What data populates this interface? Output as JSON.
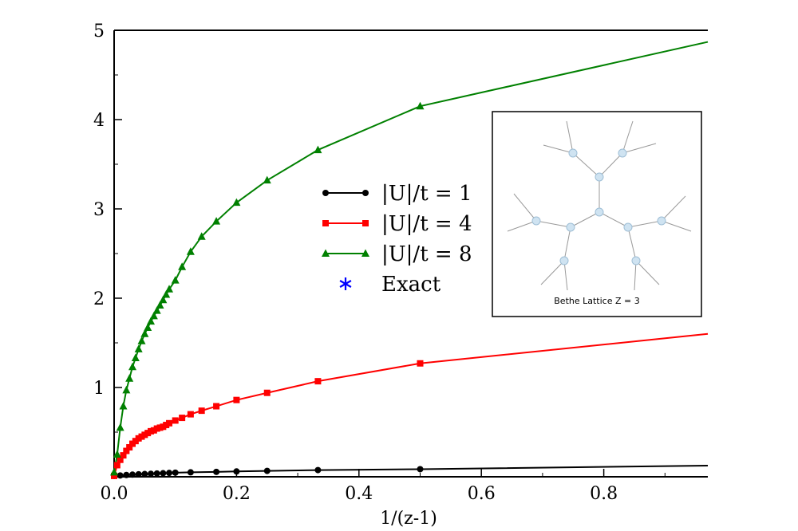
{
  "chart_data": {
    "type": "line",
    "title": "",
    "xlabel": "1/(z-1)",
    "ylabel": "",
    "xlim": [
      0,
      0.97
    ],
    "ylim": [
      0,
      5
    ],
    "x_ticks": [
      "0.0",
      "0.2",
      "0.4",
      "0.6",
      "0.8"
    ],
    "y_ticks": [
      "1",
      "2",
      "3",
      "4",
      "5"
    ],
    "grid": false,
    "legend_position": "center",
    "series": [
      {
        "name": "|U|/t = 1",
        "color": "#000000",
        "marker": "circle",
        "x": [
          0.0,
          0.01,
          0.02,
          0.03,
          0.04,
          0.05,
          0.06,
          0.07,
          0.08,
          0.09,
          0.1,
          0.125,
          0.167,
          0.2,
          0.25,
          0.333,
          0.5
        ],
        "y": [
          0.01,
          0.015,
          0.02,
          0.024,
          0.028,
          0.031,
          0.034,
          0.037,
          0.04,
          0.043,
          0.046,
          0.05,
          0.055,
          0.06,
          0.066,
          0.075,
          0.085
        ],
        "line_end": {
          "x": 0.97,
          "y": 0.125
        }
      },
      {
        "name": "|U|/t = 4",
        "color": "#ff0000",
        "marker": "square",
        "x": [
          0.0,
          0.005,
          0.01,
          0.015,
          0.02,
          0.025,
          0.03,
          0.035,
          0.04,
          0.045,
          0.05,
          0.055,
          0.06,
          0.065,
          0.07,
          0.075,
          0.08,
          0.085,
          0.09,
          0.1,
          0.111,
          0.125,
          0.143,
          0.167,
          0.2,
          0.25,
          0.333,
          0.5
        ],
        "y": [
          0.01,
          0.13,
          0.19,
          0.24,
          0.29,
          0.33,
          0.37,
          0.4,
          0.43,
          0.45,
          0.47,
          0.49,
          0.51,
          0.52,
          0.54,
          0.55,
          0.56,
          0.58,
          0.6,
          0.63,
          0.66,
          0.7,
          0.74,
          0.79,
          0.86,
          0.94,
          1.07,
          1.27
        ],
        "line_end": {
          "x": 0.97,
          "y": 1.6
        }
      },
      {
        "name": "|U|/t = 8",
        "color": "#008000",
        "marker": "triangle",
        "x": [
          0.0,
          0.005,
          0.01,
          0.015,
          0.02,
          0.025,
          0.03,
          0.035,
          0.04,
          0.045,
          0.05,
          0.055,
          0.06,
          0.065,
          0.07,
          0.075,
          0.08,
          0.085,
          0.09,
          0.1,
          0.111,
          0.125,
          0.143,
          0.167,
          0.2,
          0.25,
          0.333,
          0.5
        ],
        "y": [
          0.05,
          0.25,
          0.55,
          0.79,
          0.97,
          1.1,
          1.23,
          1.33,
          1.43,
          1.52,
          1.6,
          1.67,
          1.74,
          1.8,
          1.86,
          1.92,
          1.98,
          2.04,
          2.1,
          2.2,
          2.35,
          2.52,
          2.69,
          2.86,
          3.07,
          3.32,
          3.66,
          4.15
        ],
        "line_end": {
          "x": 0.97,
          "y": 4.87
        }
      },
      {
        "name": "Exact",
        "color": "#0000ff",
        "marker": "asterisk",
        "x": [],
        "y": []
      }
    ]
  },
  "inset": {
    "label": "Bethe Lattice Z = 3",
    "icon": "bethe-lattice-diagram"
  }
}
